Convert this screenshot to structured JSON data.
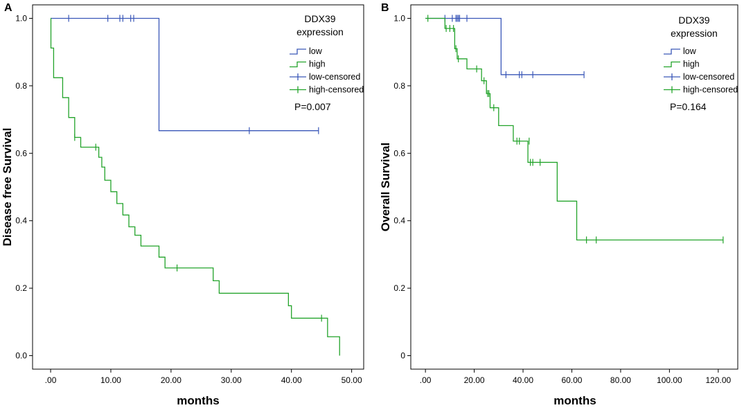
{
  "chart_data": [
    {
      "type": "line",
      "subtype": "kaplan-meier",
      "panel": "A",
      "ylabel": "Disease free Survival",
      "xlabel": "months",
      "xlim": [
        -3,
        52
      ],
      "ylim": [
        -0.04,
        1.04
      ],
      "xticks": [
        0,
        10,
        20,
        30,
        40,
        50
      ],
      "xtick_labels": [
        ".00",
        "10.00",
        "20.00",
        "30.00",
        "40.00",
        "50.00"
      ],
      "yticks": [
        0,
        0.2,
        0.4,
        0.6,
        0.8,
        1.0
      ],
      "ytick_labels": [
        "0.0",
        "0.2",
        "0.4",
        "0.6",
        "0.8",
        "1.0"
      ],
      "legend_title_lines": [
        "DDX39",
        "expression"
      ],
      "legend_entries": [
        "low",
        "high",
        "low-censored",
        "high-censored"
      ],
      "p_value": "P=0.007",
      "series": [
        {
          "name": "low",
          "color": "#3a57b8",
          "steps": [
            [
              0,
              1.0
            ],
            [
              18,
              0.667
            ],
            [
              44.5,
              0.667
            ]
          ],
          "censored": [
            [
              3,
              1.0
            ],
            [
              9.5,
              1.0
            ],
            [
              11.5,
              1.0
            ],
            [
              12,
              1.0
            ],
            [
              13.3,
              1.0
            ],
            [
              13.8,
              1.0
            ],
            [
              33,
              0.667
            ],
            [
              44.5,
              0.667
            ]
          ]
        },
        {
          "name": "high",
          "color": "#22a32a",
          "steps": [
            [
              0,
              1.0
            ],
            [
              0.05,
              0.912
            ],
            [
              0.5,
              0.824
            ],
            [
              2,
              0.765
            ],
            [
              3,
              0.706
            ],
            [
              4,
              0.647
            ],
            [
              5,
              0.618
            ],
            [
              8,
              0.588
            ],
            [
              8.5,
              0.559
            ],
            [
              9,
              0.52
            ],
            [
              10,
              0.486
            ],
            [
              11,
              0.451
            ],
            [
              12,
              0.417
            ],
            [
              13,
              0.382
            ],
            [
              14,
              0.357
            ],
            [
              15,
              0.325
            ],
            [
              18,
              0.292
            ],
            [
              19,
              0.26
            ],
            [
              27,
              0.222
            ],
            [
              28,
              0.185
            ],
            [
              39.5,
              0.148
            ],
            [
              40,
              0.111
            ],
            [
              46,
              0.056
            ],
            [
              48,
              0.0
            ]
          ],
          "censored": [
            [
              4,
              0.647
            ],
            [
              7.5,
              0.618
            ],
            [
              21,
              0.26
            ],
            [
              45,
              0.111
            ]
          ]
        }
      ]
    },
    {
      "type": "line",
      "subtype": "kaplan-meier",
      "panel": "B",
      "ylabel": "Overall Survival",
      "xlabel": "months",
      "xlim": [
        -6,
        128
      ],
      "ylim": [
        -0.04,
        1.04
      ],
      "xticks": [
        0,
        20,
        40,
        60,
        80,
        100,
        120
      ],
      "xtick_labels": [
        ".00",
        "20.00",
        "40.00",
        "60.00",
        "80.00",
        "100.00",
        "120.00"
      ],
      "yticks": [
        0,
        0.2,
        0.4,
        0.6,
        0.8,
        1.0
      ],
      "ytick_labels": [
        "0",
        "0.2",
        "0.4",
        "0.6",
        "0.8",
        "1.0"
      ],
      "legend_title_lines": [
        "DDX39",
        "expression"
      ],
      "legend_entries": [
        "low",
        "high",
        "low-censored",
        "high-censored"
      ],
      "p_value": "P=0.164",
      "series": [
        {
          "name": "low",
          "color": "#3a57b8",
          "steps": [
            [
              0,
              1.0
            ],
            [
              31,
              0.833
            ],
            [
              65,
              0.833
            ]
          ],
          "censored": [
            [
              8,
              1.0
            ],
            [
              11,
              1.0
            ],
            [
              12.5,
              1.0
            ],
            [
              13,
              1.0
            ],
            [
              13.5,
              1.0
            ],
            [
              14,
              1.0
            ],
            [
              17,
              1.0
            ],
            [
              33,
              0.833
            ],
            [
              38.5,
              0.833
            ],
            [
              39.5,
              0.833
            ],
            [
              44,
              0.833
            ],
            [
              65,
              0.833
            ]
          ]
        },
        {
          "name": "high",
          "color": "#22a32a",
          "steps": [
            [
              0,
              1.0
            ],
            [
              8,
              0.97
            ],
            [
              12,
              0.91
            ],
            [
              13,
              0.88
            ],
            [
              17,
              0.85
            ],
            [
              23,
              0.815
            ],
            [
              25,
              0.777
            ],
            [
              26.5,
              0.735
            ],
            [
              30,
              0.682
            ],
            [
              36,
              0.636
            ],
            [
              42,
              0.573
            ],
            [
              54,
              0.458
            ],
            [
              62,
              0.343
            ],
            [
              122,
              0.343
            ]
          ],
          "censored": [
            [
              1,
              1.0
            ],
            [
              8.5,
              0.97
            ],
            [
              10,
              0.97
            ],
            [
              11.5,
              0.97
            ],
            [
              12.5,
              0.91
            ],
            [
              13.5,
              0.88
            ],
            [
              21,
              0.85
            ],
            [
              24,
              0.815
            ],
            [
              25.5,
              0.777
            ],
            [
              26,
              0.777
            ],
            [
              28,
              0.735
            ],
            [
              37.5,
              0.636
            ],
            [
              38.5,
              0.636
            ],
            [
              42.5,
              0.636
            ],
            [
              43,
              0.573
            ],
            [
              44,
              0.573
            ],
            [
              47,
              0.573
            ],
            [
              66,
              0.343
            ],
            [
              70,
              0.343
            ],
            [
              122,
              0.343
            ]
          ]
        }
      ]
    }
  ]
}
